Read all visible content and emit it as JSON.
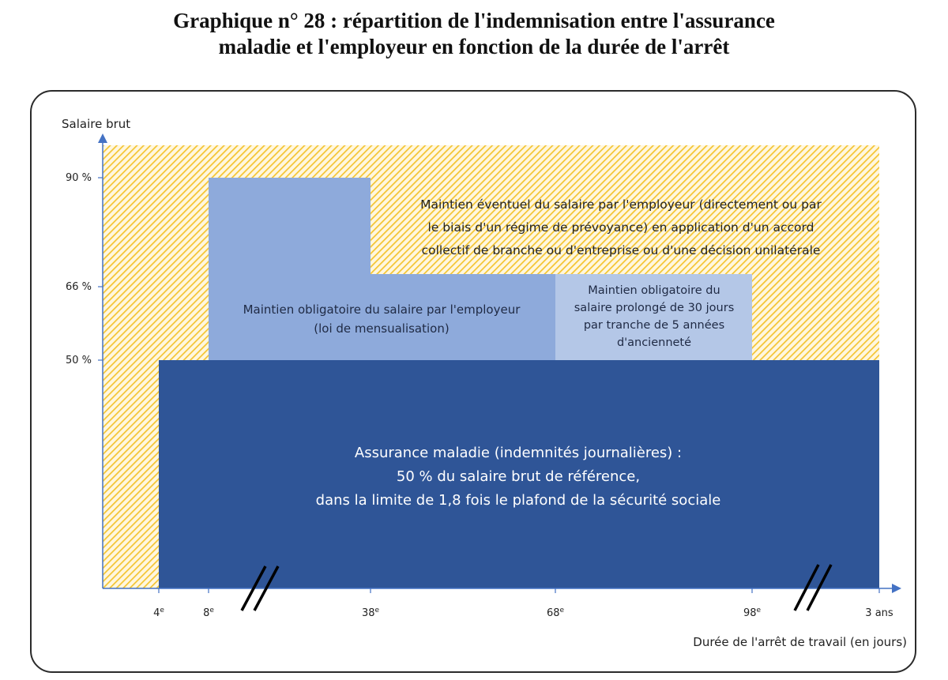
{
  "title_line1": "Graphique n° 28 : répartition de l'indemnisation entre l'assurance",
  "title_line2": "maladie et l'employeur en fonction de la durée de l'arrêt",
  "chart_data": {
    "type": "area",
    "ylabel": "Salaire brut",
    "xlabel": "Durée de l'arrêt de travail (en jours)",
    "y_ticks": [
      "90 %",
      "66 %",
      "50 %"
    ],
    "x_ticks": [
      "4e",
      "8e",
      "38e",
      "68e",
      "98e",
      "3 ans"
    ],
    "axis_breaks": [
      "between 8e and 38e",
      "between 98e and 3 ans"
    ],
    "regions": [
      {
        "name": "Assurance maladie",
        "x_from": "4e",
        "x_to": "3 ans",
        "y_from": 0,
        "y_to": 50,
        "color": "#2f5597",
        "lines": [
          "Assurance maladie (indemnités journalières) :",
          "50 % du salaire brut de référence,",
          "dans la limite de 1,8 fois le plafond de la sécurité sociale"
        ]
      },
      {
        "name": "Maintien obligatoire",
        "steps": [
          {
            "x_from": "8e",
            "x_to": "38e",
            "y_to": 90
          },
          {
            "x_from": "38e",
            "x_to": "68e",
            "y_to": 66
          }
        ],
        "y_from": 50,
        "color": "#8eaadb",
        "lines": [
          "Maintien obligatoire du salaire par l'employeur",
          "(loi de mensualisation)"
        ]
      },
      {
        "name": "Maintien prolongé",
        "x_from": "68e",
        "x_to": "98e",
        "y_from": 50,
        "y_to": 66,
        "color": "#b4c7e7",
        "lines": [
          "Maintien obligatoire du",
          "salaire prolongé de 30 jours",
          "par tranche de 5 années",
          "d'ancienneté"
        ]
      },
      {
        "name": "Maintien éventuel",
        "pattern": "hatched",
        "color": "#f4c430",
        "lines": [
          "Maintien éventuel du salaire par l'employeur (directement ou par",
          "le biais d'un régime de prévoyance) en application d'un accord",
          "collectif de branche ou d'entreprise ou d'une décision unilatérale"
        ]
      }
    ]
  }
}
